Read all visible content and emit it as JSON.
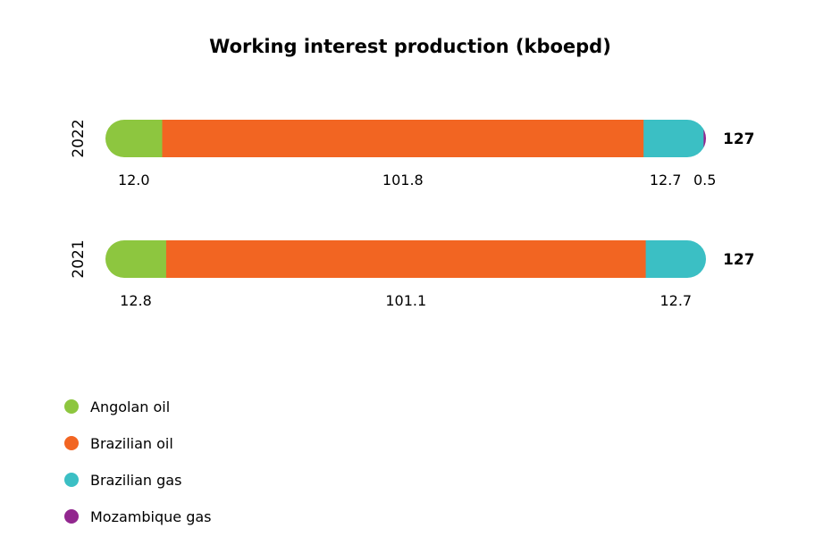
{
  "chart_data": {
    "type": "bar",
    "orientation": "horizontal",
    "stacked": true,
    "title": "Working interest production (kboepd)",
    "categories": [
      "2022",
      "2021"
    ],
    "series": [
      {
        "name": "Angolan oil",
        "color": "#8dc63f",
        "values": [
          12.0,
          12.8
        ],
        "labels": [
          "12.0",
          "12.8"
        ]
      },
      {
        "name": "Brazilian oil",
        "color": "#f26522",
        "values": [
          101.8,
          101.1
        ],
        "labels": [
          "101.8",
          "101.1"
        ]
      },
      {
        "name": "Brazilian gas",
        "color": "#3bbfc4",
        "values": [
          12.7,
          12.7
        ],
        "labels": [
          "12.7",
          "12.7"
        ]
      },
      {
        "name": "Mozambique gas",
        "color": "#92278f",
        "values": [
          0.5,
          0
        ],
        "labels": [
          "0.5",
          ""
        ]
      }
    ],
    "totals": [
      "127",
      "127"
    ],
    "xlim": [
      0,
      127
    ],
    "grid": false,
    "legend": "bottom-left"
  }
}
